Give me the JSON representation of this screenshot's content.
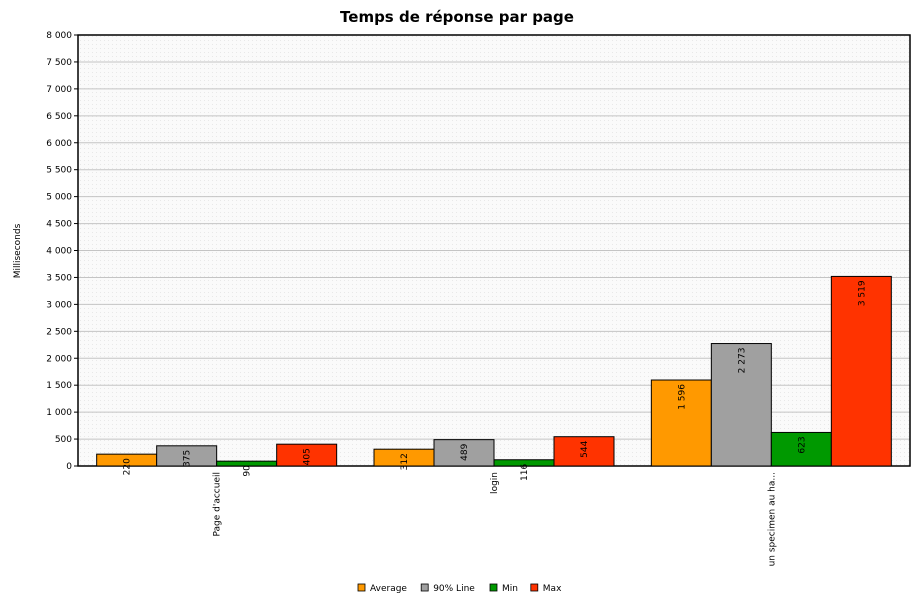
{
  "chart_data": {
    "type": "bar",
    "title": "Temps de réponse par page",
    "xlabel": "",
    "ylabel": "Milliseconds",
    "ylim": [
      0,
      8000
    ],
    "ytick_step": 500,
    "ytick_labels": [
      "0",
      "500",
      "1 000",
      "1 500",
      "2 000",
      "2 500",
      "3 000",
      "3 500",
      "4 000",
      "4 500",
      "5 000",
      "5 500",
      "6 000",
      "6 500",
      "7 000",
      "7 500",
      "8 000"
    ],
    "categories": [
      "Page d'accueil",
      "login",
      "un specimen au ha..."
    ],
    "series": [
      {
        "name": "Average",
        "color": "#FF9900",
        "values": [
          220,
          312,
          1596
        ],
        "labels": [
          "220",
          "312",
          "1 596"
        ]
      },
      {
        "name": "90% Line",
        "color": "#A0A0A0",
        "values": [
          375,
          489,
          2273
        ],
        "labels": [
          "375",
          "489",
          "2 273"
        ]
      },
      {
        "name": "Min",
        "color": "#009900",
        "values": [
          90,
          116,
          623
        ],
        "labels": [
          "90",
          "116",
          "623"
        ]
      },
      {
        "name": "Max",
        "color": "#FF3300",
        "values": [
          405,
          544,
          3519
        ],
        "labels": [
          "405",
          "544",
          "3 519"
        ]
      }
    ],
    "grid": true,
    "legend_position": "bottom-center"
  }
}
